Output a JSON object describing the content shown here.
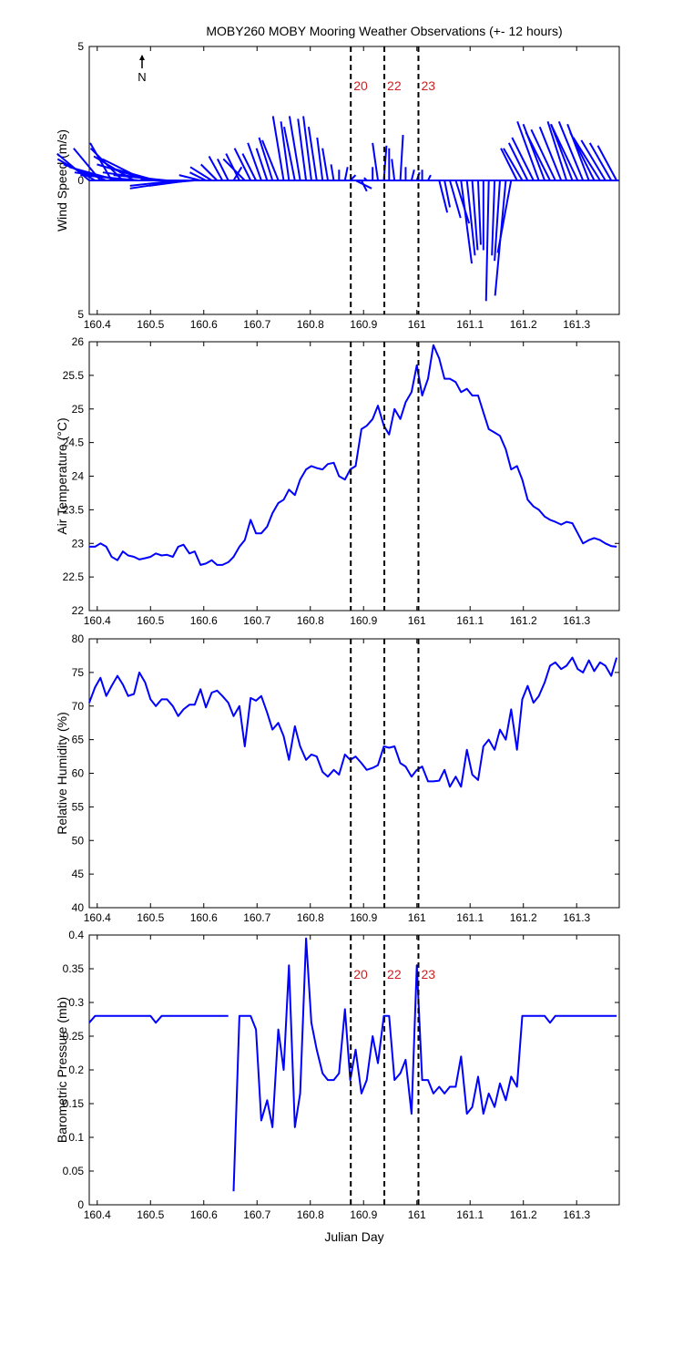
{
  "title": "MOBY260 MOBY Mooring Weather Observations (+- 12 hours)",
  "north_label": "N",
  "colors": {
    "series": "#0000ff",
    "marker_text": "#cc2222",
    "axis": "#000000"
  },
  "markers": {
    "x": [
      160.876,
      160.939,
      161.003
    ],
    "labels": [
      "20",
      "22",
      "23"
    ]
  },
  "chart_data": [
    {
      "type": "vector",
      "ylabel": "Wind Speed (m/s)",
      "xlabel": "",
      "xlim": [
        160.385,
        161.38
      ],
      "ylim": [
        -5,
        5
      ],
      "xticks": [
        160.4,
        160.5,
        160.6,
        160.7,
        160.8,
        160.9,
        161,
        161.1,
        161.2,
        161.3
      ],
      "yticks": [
        {
          "v": 5,
          "label": "5"
        },
        {
          "v": 0,
          "label": "0"
        },
        {
          "v": -5,
          "label": "5"
        }
      ],
      "show_marker_labels": true,
      "t": [
        160.385,
        160.396,
        160.406,
        160.417,
        160.427,
        160.438,
        160.448,
        160.458,
        160.469,
        160.479,
        160.49,
        160.5,
        160.51,
        160.521,
        160.531,
        160.542,
        160.552,
        160.562,
        160.573,
        160.583,
        160.594,
        160.604,
        160.615,
        160.625,
        160.635,
        160.646,
        160.656,
        160.667,
        160.677,
        160.688,
        160.698,
        160.708,
        160.719,
        160.729,
        160.74,
        160.75,
        160.76,
        160.771,
        160.781,
        160.792,
        160.802,
        160.812,
        160.823,
        160.833,
        160.844,
        160.854,
        160.865,
        160.875,
        160.885,
        160.896,
        160.906,
        160.917,
        160.927,
        160.938,
        160.948,
        160.958,
        160.969,
        160.979,
        160.99,
        161.0,
        161.01,
        161.021,
        161.031,
        161.042,
        161.052,
        161.062,
        161.073,
        161.083,
        161.094,
        161.104,
        161.115,
        161.125,
        161.135,
        161.146,
        161.156,
        161.167,
        161.177,
        161.188,
        161.198,
        161.208,
        161.219,
        161.229,
        161.24,
        161.25,
        161.26,
        161.271,
        161.281,
        161.292,
        161.302,
        161.312,
        161.323,
        161.333,
        161.344,
        161.354,
        161.365,
        161.375
      ],
      "u": [
        -1.2,
        -1.4,
        -1.0,
        -1.6,
        -0.8,
        -1.8,
        -1.2,
        -2.0,
        -1.5,
        -2.2,
        -1.6,
        -2.0,
        -1.8,
        -2.2,
        -2.0,
        -2.0,
        -1.8,
        -2.0,
        -1.5,
        -1.2,
        -0.8,
        -0.6,
        -0.8,
        -0.6,
        -0.5,
        -0.4,
        0.3,
        -0.5,
        -0.8,
        -0.6,
        -0.5,
        -0.5,
        -0.4,
        -0.5,
        -0.6,
        -0.4,
        -0.3,
        -0.4,
        -0.4,
        -0.3,
        -0.3,
        -0.3,
        -0.2,
        -0.2,
        -0.1,
        0.0,
        0.1,
        0.2,
        0.6,
        0.2,
        -0.1,
        0.0,
        -0.2,
        0.1,
        0.0,
        -0.1,
        0.1,
        0.0,
        0.1,
        0.1,
        0.0,
        0.1,
        0.2,
        0.3,
        0.2,
        0.4,
        0.5,
        0.4,
        0.3,
        0.2,
        0.1,
        0.0,
        -0.1,
        -0.1,
        -0.2,
        -0.4,
        -0.5,
        -0.6,
        -0.7,
        -0.7,
        -0.8,
        -0.8,
        -0.8,
        -0.9,
        -0.9,
        -0.8,
        -0.7,
        -0.8,
        -1.0,
        -0.9,
        -0.8,
        -0.9,
        -1.0,
        -0.9,
        -0.8,
        -0.7
      ],
      "v": [
        1.0,
        0.8,
        1.2,
        0.6,
        1.4,
        0.5,
        1.2,
        0.3,
        0.9,
        0.2,
        0.8,
        0.6,
        0.5,
        0.3,
        0.2,
        0.0,
        -0.2,
        -0.3,
        -0.2,
        -0.1,
        0.2,
        0.3,
        0.5,
        0.6,
        0.9,
        0.8,
        0.5,
        1.0,
        0.8,
        1.2,
        1.0,
        1.4,
        1.2,
        1.6,
        1.5,
        2.4,
        2.2,
        2.0,
        2.4,
        2.3,
        2.4,
        2.0,
        1.6,
        1.2,
        0.6,
        0.4,
        0.5,
        0.2,
        -0.3,
        -0.4,
        0.1,
        0.5,
        1.4,
        1.3,
        1.2,
        0.8,
        1.7,
        0.5,
        0.4,
        0.3,
        0.4,
        0.2,
        0.0,
        -1.2,
        -1.0,
        -1.4,
        -1.6,
        -3.1,
        -2.8,
        -2.6,
        -2.4,
        -2.6,
        -4.5,
        -2.8,
        -3.0,
        -4.3,
        -2.7,
        1.2,
        1.2,
        1.4,
        1.6,
        2.2,
        2.1,
        1.8,
        1.9,
        2.0,
        2.2,
        2.1,
        2.1,
        2.2,
        2.1,
        1.8,
        1.6,
        1.5,
        1.4,
        1.3
      ]
    },
    {
      "type": "line",
      "ylabel": "Air Temperature (°C)",
      "xlabel": "",
      "xlim": [
        160.385,
        161.38
      ],
      "ylim": [
        22,
        26
      ],
      "xticks": [
        160.4,
        160.5,
        160.6,
        160.7,
        160.8,
        160.9,
        161,
        161.1,
        161.2,
        161.3
      ],
      "yticks": [
        {
          "v": 26,
          "label": "26"
        },
        {
          "v": 25.5,
          "label": "25.5"
        },
        {
          "v": 25,
          "label": "25"
        },
        {
          "v": 24.5,
          "label": "24.5"
        },
        {
          "v": 24,
          "label": "24"
        },
        {
          "v": 23.5,
          "label": "23.5"
        },
        {
          "v": 23,
          "label": "23"
        },
        {
          "v": 22.5,
          "label": "22.5"
        },
        {
          "v": 22,
          "label": "22"
        }
      ],
      "show_marker_labels": false,
      "x": [
        160.385,
        160.396,
        160.406,
        160.417,
        160.427,
        160.438,
        160.448,
        160.458,
        160.469,
        160.479,
        160.49,
        160.5,
        160.51,
        160.521,
        160.531,
        160.542,
        160.552,
        160.562,
        160.573,
        160.583,
        160.594,
        160.604,
        160.615,
        160.625,
        160.635,
        160.646,
        160.656,
        160.667,
        160.677,
        160.688,
        160.698,
        160.708,
        160.719,
        160.729,
        160.74,
        160.75,
        160.76,
        160.771,
        160.781,
        160.792,
        160.802,
        160.812,
        160.823,
        160.833,
        160.844,
        160.854,
        160.865,
        160.875,
        160.885,
        160.896,
        160.906,
        160.917,
        160.927,
        160.938,
        160.948,
        160.958,
        160.969,
        160.979,
        160.99,
        161.0,
        161.01,
        161.021,
        161.031,
        161.042,
        161.052,
        161.062,
        161.073,
        161.083,
        161.094,
        161.104,
        161.115,
        161.125,
        161.135,
        161.146,
        161.156,
        161.167,
        161.177,
        161.188,
        161.198,
        161.208,
        161.219,
        161.229,
        161.24,
        161.25,
        161.26,
        161.271,
        161.281,
        161.292,
        161.302,
        161.312,
        161.323,
        161.333,
        161.344,
        161.354,
        161.365,
        161.375
      ],
      "y": [
        22.95,
        22.95,
        23.0,
        22.95,
        22.8,
        22.75,
        22.88,
        22.82,
        22.8,
        22.76,
        22.78,
        22.8,
        22.85,
        22.82,
        22.83,
        22.8,
        22.95,
        22.98,
        22.85,
        22.88,
        22.68,
        22.7,
        22.75,
        22.68,
        22.68,
        22.72,
        22.8,
        22.95,
        23.05,
        23.35,
        23.15,
        23.15,
        23.25,
        23.45,
        23.6,
        23.65,
        23.8,
        23.72,
        23.95,
        24.1,
        24.15,
        24.12,
        24.1,
        24.18,
        24.2,
        24.0,
        23.95,
        24.1,
        24.15,
        24.7,
        24.75,
        24.85,
        25.05,
        24.75,
        24.62,
        25.0,
        24.85,
        25.1,
        25.25,
        25.65,
        25.2,
        25.45,
        25.95,
        25.75,
        25.45,
        25.45,
        25.4,
        25.25,
        25.3,
        25.2,
        25.2,
        24.95,
        24.7,
        24.65,
        24.6,
        24.4,
        24.1,
        24.15,
        23.95,
        23.65,
        23.55,
        23.5,
        23.4,
        23.35,
        23.32,
        23.28,
        23.32,
        23.3,
        23.15,
        23.0,
        23.05,
        23.08,
        23.05,
        23.0,
        22.96,
        22.95
      ]
    },
    {
      "type": "line",
      "ylabel": "Relative Humidity (%)",
      "xlabel": "",
      "xlim": [
        160.385,
        161.38
      ],
      "ylim": [
        40,
        80
      ],
      "xticks": [
        160.4,
        160.5,
        160.6,
        160.7,
        160.8,
        160.9,
        161,
        161.1,
        161.2,
        161.3
      ],
      "yticks": [
        {
          "v": 80,
          "label": "80"
        },
        {
          "v": 75,
          "label": "75"
        },
        {
          "v": 70,
          "label": "70"
        },
        {
          "v": 65,
          "label": "65"
        },
        {
          "v": 60,
          "label": "60"
        },
        {
          "v": 55,
          "label": "55"
        },
        {
          "v": 50,
          "label": "50"
        },
        {
          "v": 45,
          "label": "45"
        },
        {
          "v": 40,
          "label": "40"
        }
      ],
      "show_marker_labels": false,
      "x": [
        160.385,
        160.396,
        160.406,
        160.417,
        160.427,
        160.438,
        160.448,
        160.458,
        160.469,
        160.479,
        160.49,
        160.5,
        160.51,
        160.521,
        160.531,
        160.542,
        160.552,
        160.562,
        160.573,
        160.583,
        160.594,
        160.604,
        160.615,
        160.625,
        160.635,
        160.646,
        160.656,
        160.667,
        160.677,
        160.688,
        160.698,
        160.708,
        160.719,
        160.729,
        160.74,
        160.75,
        160.76,
        160.771,
        160.781,
        160.792,
        160.802,
        160.812,
        160.823,
        160.833,
        160.844,
        160.854,
        160.865,
        160.875,
        160.885,
        160.896,
        160.906,
        160.917,
        160.927,
        160.938,
        160.948,
        160.958,
        160.969,
        160.979,
        160.99,
        161.0,
        161.01,
        161.021,
        161.031,
        161.042,
        161.052,
        161.062,
        161.073,
        161.083,
        161.094,
        161.104,
        161.115,
        161.125,
        161.135,
        161.146,
        161.156,
        161.167,
        161.177,
        161.188,
        161.198,
        161.208,
        161.219,
        161.229,
        161.24,
        161.25,
        161.26,
        161.271,
        161.281,
        161.292,
        161.302,
        161.312,
        161.323,
        161.333,
        161.344,
        161.354,
        161.365,
        161.375
      ],
      "y": [
        70.5,
        72.8,
        74.2,
        71.5,
        73.0,
        74.5,
        73.2,
        71.5,
        71.8,
        75.0,
        73.5,
        71.0,
        70.0,
        71.0,
        71.0,
        70.0,
        68.5,
        69.5,
        70.2,
        70.2,
        72.5,
        69.8,
        72.0,
        72.3,
        71.5,
        70.5,
        68.5,
        70.0,
        64.0,
        71.2,
        70.8,
        71.5,
        69.0,
        66.5,
        67.5,
        65.5,
        62.0,
        67.0,
        64.0,
        62.0,
        62.8,
        62.5,
        60.2,
        59.5,
        60.5,
        59.8,
        62.8,
        62.0,
        62.5,
        61.5,
        60.5,
        60.8,
        61.2,
        64.0,
        63.8,
        64.0,
        61.5,
        61.0,
        59.5,
        60.5,
        61.0,
        58.8,
        58.8,
        58.9,
        60.5,
        58.0,
        59.5,
        58.0,
        63.5,
        59.8,
        59.0,
        64.0,
        65.0,
        63.5,
        66.5,
        65.0,
        69.5,
        63.5,
        71.0,
        73.0,
        70.5,
        71.5,
        73.5,
        76.0,
        76.5,
        75.5,
        76.0,
        77.2,
        75.5,
        75.0,
        76.8,
        75.2,
        76.5,
        76.0,
        74.5,
        77.2
      ]
    },
    {
      "type": "line",
      "ylabel": "Barometric Pressure (mb)",
      "xlabel": "Julian Day",
      "xlim": [
        160.385,
        161.38
      ],
      "ylim": [
        0,
        0.4
      ],
      "xticks": [
        160.4,
        160.5,
        160.6,
        160.7,
        160.8,
        160.9,
        161,
        161.1,
        161.2,
        161.3
      ],
      "yticks": [
        {
          "v": 0.4,
          "label": "0.4"
        },
        {
          "v": 0.35,
          "label": "0.35"
        },
        {
          "v": 0.3,
          "label": "0.3"
        },
        {
          "v": 0.25,
          "label": "0.25"
        },
        {
          "v": 0.2,
          "label": "0.2"
        },
        {
          "v": 0.15,
          "label": "0.15"
        },
        {
          "v": 0.1,
          "label": "0.1"
        },
        {
          "v": 0.05,
          "label": "0.05"
        },
        {
          "v": 0,
          "label": "0"
        }
      ],
      "show_marker_labels": true,
      "segments": [
        {
          "x": [
            160.385,
            160.396,
            160.406,
            160.417,
            160.427,
            160.438,
            160.448,
            160.458,
            160.469,
            160.479,
            160.49,
            160.5,
            160.51,
            160.521,
            160.531,
            160.542,
            160.552,
            160.562,
            160.573,
            160.583,
            160.594,
            160.604,
            160.615,
            160.625,
            160.635,
            160.646
          ],
          "y": [
            0.27,
            0.28,
            0.28,
            0.28,
            0.28,
            0.28,
            0.28,
            0.28,
            0.28,
            0.28,
            0.28,
            0.28,
            0.27,
            0.28,
            0.28,
            0.28,
            0.28,
            0.28,
            0.28,
            0.28,
            0.28,
            0.28,
            0.28,
            0.28,
            0.28,
            0.28
          ]
        },
        {
          "x": [
            160.656,
            160.667,
            160.677,
            160.688,
            160.698,
            160.708,
            160.719,
            160.729,
            160.74,
            160.75,
            160.76,
            160.771,
            160.781,
            160.792,
            160.802,
            160.812,
            160.823,
            160.833,
            160.844,
            160.854,
            160.865,
            160.875,
            160.885,
            160.896,
            160.906,
            160.917,
            160.927,
            160.938,
            160.948,
            160.958,
            160.969,
            160.979,
            160.99,
            161.0,
            161.01,
            161.021,
            161.031,
            161.042,
            161.052,
            161.062,
            161.073,
            161.083,
            161.094,
            161.104,
            161.115,
            161.125,
            161.135,
            161.146,
            161.156,
            161.167,
            161.177,
            161.188,
            161.198,
            161.208,
            161.219,
            161.229,
            161.24,
            161.25,
            161.26,
            161.271,
            161.281,
            161.292,
            161.302,
            161.312,
            161.323,
            161.333,
            161.344,
            161.354,
            161.365,
            161.375
          ],
          "y": [
            0.02,
            0.28,
            0.28,
            0.28,
            0.26,
            0.125,
            0.155,
            0.115,
            0.26,
            0.2,
            0.355,
            0.115,
            0.165,
            0.395,
            0.27,
            0.23,
            0.195,
            0.185,
            0.185,
            0.195,
            0.29,
            0.185,
            0.23,
            0.165,
            0.185,
            0.25,
            0.21,
            0.28,
            0.28,
            0.185,
            0.195,
            0.215,
            0.135,
            0.355,
            0.185,
            0.185,
            0.165,
            0.175,
            0.165,
            0.175,
            0.175,
            0.22,
            0.135,
            0.145,
            0.19,
            0.135,
            0.165,
            0.145,
            0.18,
            0.155,
            0.19,
            0.175,
            0.28,
            0.28,
            0.28,
            0.28,
            0.28,
            0.27,
            0.28,
            0.28,
            0.28,
            0.28,
            0.28,
            0.28,
            0.28,
            0.28,
            0.28,
            0.28,
            0.28,
            0.28
          ]
        }
      ]
    }
  ]
}
